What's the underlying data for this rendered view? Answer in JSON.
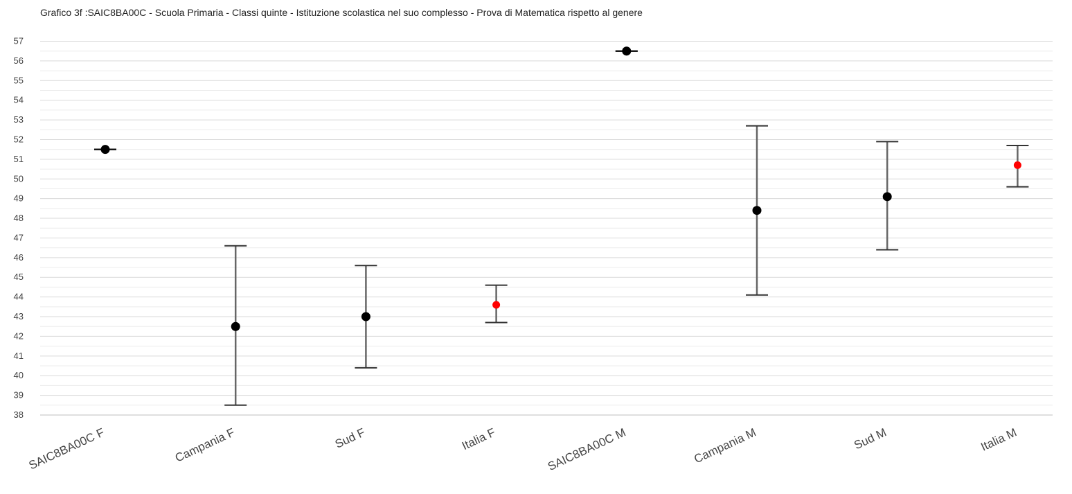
{
  "chart_data": {
    "type": "scatter",
    "title": "Grafico 3f :SAIC8BA00C - Scuola Primaria - Classi quinte - Istituzione scolastica nel suo complesso - Prova di Matematica rispetto al genere",
    "xlabel": "",
    "ylabel": "",
    "ylim": [
      38,
      57
    ],
    "yticks": [
      38,
      39,
      40,
      41,
      42,
      43,
      44,
      45,
      46,
      47,
      48,
      49,
      50,
      51,
      52,
      53,
      54,
      55,
      56,
      57
    ],
    "grid": true,
    "legend": "none",
    "categories": [
      "SAIC8BA00C F",
      "Campania F",
      "Sud F",
      "Italia F",
      "SAIC8BA00C M",
      "Campania M",
      "Sud M",
      "Italia M"
    ],
    "values": [
      51.5,
      42.5,
      43.0,
      43.6,
      56.5,
      48.4,
      49.1,
      50.7
    ],
    "lower": [
      51.5,
      38.5,
      40.4,
      42.7,
      56.5,
      44.1,
      46.4,
      49.6
    ],
    "upper": [
      51.5,
      46.6,
      45.6,
      44.6,
      56.5,
      52.7,
      51.9,
      51.7
    ],
    "point_colors": [
      "#000000",
      "#000000",
      "#000000",
      "#ff0000",
      "#000000",
      "#000000",
      "#000000",
      "#ff0000"
    ],
    "colors": {
      "point": "#000000",
      "highlight": "#ff0000",
      "error_bar": "#666666",
      "grid": "#d9d9d9",
      "axis_text": "#444444"
    }
  }
}
